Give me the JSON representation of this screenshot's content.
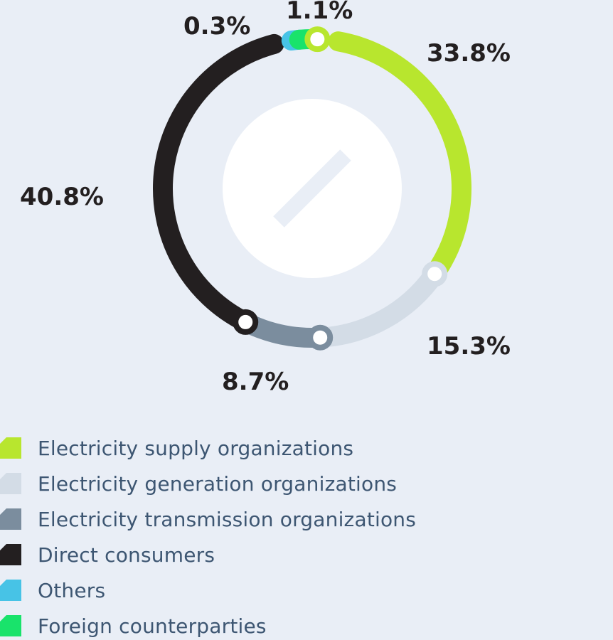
{
  "chart_data": {
    "type": "pie",
    "categories": [
      "Electricity supply organizations",
      "Electricity generation organizations",
      "Electricity transmission organizations",
      "Direct consumers",
      "Others",
      "Foreign counterparties"
    ],
    "values": [
      33.8,
      15.3,
      8.7,
      40.8,
      0.3,
      1.1
    ],
    "data_labels": [
      "33.8%",
      "15.3%",
      "8.7%",
      "40.8%",
      "0.3%",
      "1.1%"
    ],
    "colors": [
      "#b8e62e",
      "#d3dce6",
      "#7b8d9e",
      "#231f20",
      "#47c3e6",
      "#19e36b"
    ],
    "legend_placement": "bottom-left",
    "title": "",
    "center_icon": "slash-icon"
  },
  "legend": {
    "items": [
      {
        "label": "Electricity supply organizations",
        "color": "#b8e62e"
      },
      {
        "label": "Electricity generation organizations",
        "color": "#d3dce6"
      },
      {
        "label": "Electricity transmission organizations",
        "color": "#7b8d9e"
      },
      {
        "label": "Direct consumers",
        "color": "#231f20"
      },
      {
        "label": "Others",
        "color": "#47c3e6"
      },
      {
        "label": "Foreign counterparties",
        "color": "#19e36b"
      }
    ]
  }
}
